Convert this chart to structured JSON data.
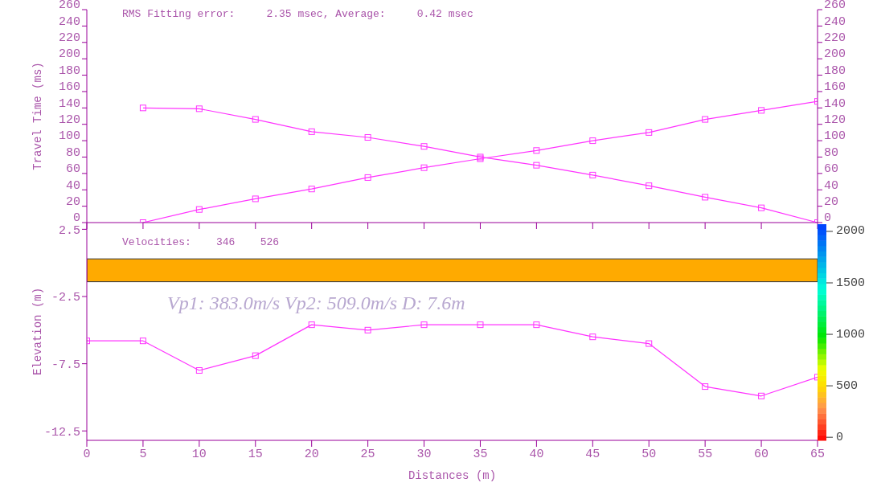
{
  "chart_data": [
    {
      "type": "line",
      "ylabel": "Travel Time (ms)",
      "x": [
        5,
        10,
        15,
        20,
        25,
        30,
        35,
        40,
        45,
        50,
        55,
        60,
        65
      ],
      "xlim": [
        0,
        65
      ],
      "xticks": [
        0,
        5,
        10,
        15,
        20,
        25,
        30,
        35,
        40,
        45,
        50,
        55,
        60,
        65
      ],
      "ylim": [
        0,
        260
      ],
      "yticks": [
        0,
        20,
        40,
        60,
        80,
        100,
        120,
        140,
        160,
        180,
        200,
        220,
        240,
        260
      ],
      "y2lim": [
        0,
        260
      ],
      "y2ticks": [
        0,
        20,
        40,
        60,
        80,
        100,
        120,
        140,
        160,
        180,
        200,
        220,
        240,
        260
      ],
      "tick_labels": "y",
      "marker": "square",
      "series": [
        {
          "color": "#ff33ff",
          "values": [
            0,
            16,
            29,
            41,
            55,
            67,
            78,
            88,
            100,
            110,
            126,
            137,
            148
          ]
        },
        {
          "color": "#ff33ff",
          "values": [
            140,
            139,
            126,
            111,
            104,
            93,
            80,
            70,
            58,
            45,
            31,
            18,
            0
          ]
        }
      ],
      "annotations": [
        "RMS Fitting error:     2.35 msec, Average:     0.42 msec"
      ]
    },
    {
      "type": "line",
      "xlabel": "Distances (m)",
      "ylabel": "Elevation (m)",
      "x": [
        0,
        5,
        10,
        15,
        20,
        25,
        30,
        35,
        40,
        45,
        50,
        55,
        60,
        65
      ],
      "xlim": [
        0,
        65
      ],
      "xticks": [
        0,
        5,
        10,
        15,
        20,
        25,
        30,
        35,
        40,
        45,
        50,
        55,
        60,
        65
      ],
      "ylim": [
        -13.2,
        3
      ],
      "yticks": [
        2.5,
        -2.5,
        -7.5,
        -12.5
      ],
      "marker": "square",
      "clim": [
        -30,
        2070
      ],
      "cticks": [
        0,
        500,
        1000,
        1500,
        2000
      ],
      "series": [
        {
          "color": "#ff33ff",
          "values": [
            -5.8,
            -5.8,
            -8.0,
            -6.9,
            -4.6,
            -5.0,
            -4.6,
            -4.6,
            -4.6,
            -5.5,
            -6.0,
            -9.2,
            -9.9,
            -8.5
          ]
        }
      ],
      "bands": [
        {
          "axis": "y",
          "from": -1.4,
          "to": 0.3,
          "color": "#ffaa00"
        }
      ],
      "annotations": [
        "Velocities:    346    526",
        "Vp1: 383.0m/s Vp2: 509.0m/s D: 7.6m"
      ]
    }
  ]
}
